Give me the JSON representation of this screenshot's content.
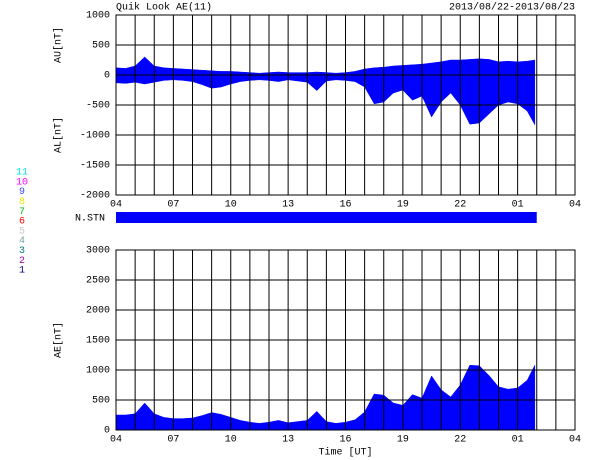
{
  "chart_data": [
    {
      "type": "area",
      "title": "Quik Look AE(11)",
      "date_range": "2013/08/22-2013/08/23",
      "ylabels": [
        "AU[nT]",
        "AL[nT]"
      ],
      "x": [
        0,
        0.5,
        1,
        1.5,
        2,
        2.5,
        3,
        3.5,
        4,
        4.5,
        5,
        5.5,
        6,
        6.5,
        7,
        7.5,
        8,
        8.5,
        9,
        9.5,
        10,
        10.5,
        11,
        11.5,
        12,
        12.5,
        13,
        13.5,
        14,
        14.5,
        15,
        15.5,
        16,
        16.5,
        17,
        17.5,
        18,
        18.5,
        19,
        19.5,
        20,
        20.5,
        21,
        21.5,
        21.9
      ],
      "series": [
        {
          "name": "AU",
          "color": "#0000ff",
          "values": [
            120,
            110,
            150,
            300,
            150,
            120,
            110,
            100,
            90,
            80,
            70,
            60,
            60,
            50,
            40,
            30,
            40,
            50,
            40,
            40,
            40,
            50,
            40,
            30,
            40,
            60,
            100,
            120,
            130,
            150,
            160,
            170,
            180,
            200,
            220,
            250,
            250,
            260,
            270,
            260,
            220,
            230,
            220,
            230,
            250
          ]
        },
        {
          "name": "AL",
          "color": "#0000ff",
          "values": [
            -130,
            -140,
            -120,
            -150,
            -120,
            -90,
            -80,
            -90,
            -110,
            -160,
            -220,
            -200,
            -150,
            -110,
            -90,
            -80,
            -90,
            -110,
            -80,
            -100,
            -120,
            -260,
            -100,
            -80,
            -90,
            -110,
            -200,
            -480,
            -450,
            -300,
            -250,
            -420,
            -350,
            -700,
            -450,
            -300,
            -500,
            -820,
            -800,
            -650,
            -500,
            -450,
            -480,
            -600,
            -830
          ]
        }
      ],
      "xlim": [
        0,
        24
      ],
      "xticks": [
        {
          "value": 0,
          "label": "04"
        },
        {
          "value": 3,
          "label": "07"
        },
        {
          "value": 6,
          "label": "10"
        },
        {
          "value": 9,
          "label": "13"
        },
        {
          "value": 12,
          "label": "16"
        },
        {
          "value": 15,
          "label": "19"
        },
        {
          "value": 18,
          "label": "22"
        },
        {
          "value": 21,
          "label": "01"
        },
        {
          "value": 24,
          "label": "04"
        }
      ],
      "xgrid": [
        1,
        2,
        4,
        5,
        7,
        8,
        10,
        11,
        13,
        14,
        16,
        17,
        19,
        20,
        22,
        23
      ],
      "ylim": [
        -2000,
        1000
      ],
      "yticks": [
        -2000,
        -1500,
        -1000,
        -500,
        0,
        500,
        1000
      ],
      "grid": true
    },
    {
      "type": "area",
      "ylabels": [
        "AE[nT]"
      ],
      "xlabel": "Time [UT]",
      "x": [
        0,
        0.5,
        1,
        1.5,
        2,
        2.5,
        3,
        3.5,
        4,
        4.5,
        5,
        5.5,
        6,
        6.5,
        7,
        7.5,
        8,
        8.5,
        9,
        9.5,
        10,
        10.5,
        11,
        11.5,
        12,
        12.5,
        13,
        13.5,
        14,
        14.5,
        15,
        15.5,
        16,
        16.5,
        17,
        17.5,
        18,
        18.5,
        19,
        19.5,
        20,
        20.5,
        21,
        21.5,
        21.9
      ],
      "series": [
        {
          "name": "AE",
          "color": "#0000ff",
          "values": [
            250,
            250,
            270,
            450,
            270,
            210,
            190,
            190,
            200,
            240,
            290,
            260,
            210,
            160,
            130,
            110,
            130,
            160,
            120,
            140,
            160,
            310,
            140,
            110,
            130,
            170,
            300,
            600,
            580,
            450,
            410,
            590,
            530,
            900,
            670,
            550,
            750,
            1080,
            1070,
            910,
            720,
            680,
            700,
            830,
            1080
          ]
        }
      ],
      "xlim": [
        0,
        24
      ],
      "xticks": [
        {
          "value": 0,
          "label": "04"
        },
        {
          "value": 3,
          "label": "07"
        },
        {
          "value": 6,
          "label": "10"
        },
        {
          "value": 9,
          "label": "13"
        },
        {
          "value": 12,
          "label": "16"
        },
        {
          "value": 15,
          "label": "19"
        },
        {
          "value": 18,
          "label": "22"
        },
        {
          "value": 21,
          "label": "01"
        },
        {
          "value": 24,
          "label": "04"
        }
      ],
      "xgrid": [
        1,
        2,
        4,
        5,
        7,
        8,
        10,
        11,
        13,
        14,
        16,
        17,
        19,
        20,
        22,
        23
      ],
      "ylim": [
        0,
        3000
      ],
      "yticks": [
        0,
        500,
        1000,
        1500,
        2000,
        2500,
        3000
      ],
      "grid": true
    }
  ],
  "station_bar": {
    "label": "N.STN",
    "color": "#0000ff",
    "start": 0,
    "end": 22
  },
  "station_legend": [
    {
      "label": "11",
      "color": "#00e0e0"
    },
    {
      "label": "10",
      "color": "#ff00ff"
    },
    {
      "label": "9",
      "color": "#4040ff"
    },
    {
      "label": "8",
      "color": "#e8e800"
    },
    {
      "label": "7",
      "color": "#00c000"
    },
    {
      "label": "6",
      "color": "#ff0000"
    },
    {
      "label": "5",
      "color": "#c8c8c8"
    },
    {
      "label": "4",
      "color": "#70a0a0"
    },
    {
      "label": "3",
      "color": "#008080"
    },
    {
      "label": "2",
      "color": "#a000a0"
    },
    {
      "label": "1",
      "color": "#000080"
    }
  ]
}
